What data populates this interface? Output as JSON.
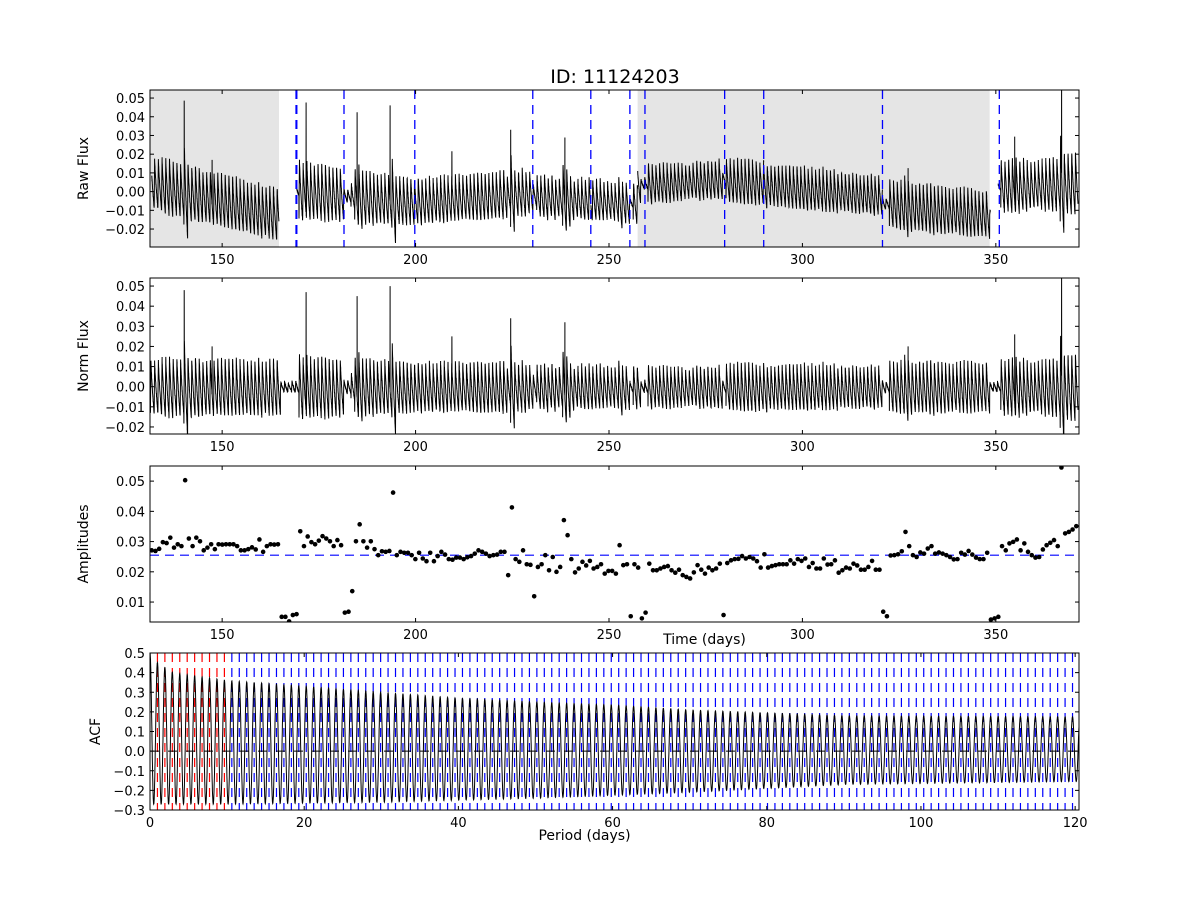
{
  "title": "ID: 11124203",
  "chart_data": [
    {
      "type": "line",
      "ylabel": "Raw Flux",
      "xlim": [
        131.35,
        371.5
      ],
      "ylim": [
        -0.0296,
        0.0543
      ],
      "xticks": [
        150,
        200,
        250,
        300,
        350
      ],
      "xtick_labels": [
        "150",
        "200",
        "250",
        "300",
        "350"
      ],
      "yticks": [
        0.05,
        0.04,
        0.03,
        0.02,
        0.01,
        0.0,
        -0.01,
        -0.02
      ],
      "ytick_labels": [
        "0.05",
        "0.04",
        "0.03",
        "0.02",
        "0.01",
        "0.00",
        "−0.01",
        "−0.02"
      ],
      "shaded_regions": [
        [
          131.35,
          164.7
        ],
        [
          257.4,
          348.4
        ]
      ],
      "shade_color": "#e5e5e5",
      "vlines": [
        169.1,
        169.3,
        181.5,
        199.8,
        230.3,
        245.3,
        255.4,
        259.3,
        279.9,
        290.0,
        320.7,
        350.9
      ],
      "vline_color": "#0000ff",
      "baseline_segments": [
        {
          "t": [
            131.8,
            164.7
          ],
          "flux": [
            0.005,
            -0.012
          ]
        },
        {
          "t": [
            169.2,
            181.5
          ],
          "flux": [
            0.001,
            -0.001
          ]
        },
        {
          "t": [
            181.5,
            199.8
          ],
          "flux": [
            -0.002,
            -0.005
          ]
        },
        {
          "t": [
            199.8,
            230.3
          ],
          "flux": [
            -0.005,
            0.0
          ]
        },
        {
          "t": [
            230.3,
            245.3
          ],
          "flux": [
            -0.002,
            -0.004
          ]
        },
        {
          "t": [
            245.3,
            257.4
          ],
          "flux": [
            -0.004,
            -0.006
          ]
        },
        {
          "t": [
            257.4,
            279.9
          ],
          "flux": [
            0.004,
            0.007
          ]
        },
        {
          "t": [
            279.9,
            290.0
          ],
          "flux": [
            0.006,
            0.005
          ]
        },
        {
          "t": [
            290.0,
            320.7
          ],
          "flux": [
            0.004,
            -0.002
          ]
        },
        {
          "t": [
            320.7,
            348.6
          ],
          "flux": [
            -0.006,
            -0.012
          ]
        },
        {
          "t": [
            350.6,
            371.3
          ],
          "flux": [
            0.003,
            0.005
          ]
        }
      ]
    },
    {
      "type": "line",
      "ylabel": "Norm Flux",
      "xlim": [
        131.35,
        371.5
      ],
      "ylim": [
        -0.0235,
        0.054
      ],
      "xticks": [
        150,
        200,
        250,
        300,
        350
      ],
      "xtick_labels": [
        "150",
        "200",
        "250",
        "300",
        "350"
      ],
      "yticks": [
        0.05,
        0.04,
        0.03,
        0.02,
        0.01,
        0.0,
        -0.01,
        -0.02
      ],
      "ytick_labels": [
        "0.05",
        "0.04",
        "0.03",
        "0.02",
        "0.01",
        "0.00",
        "−0.01",
        "−0.02"
      ],
      "flares": [
        {
          "t": 140.2,
          "flux": 0.048
        },
        {
          "t": 147.4,
          "flux": 0.02
        },
        {
          "t": 171.7,
          "flux": 0.047
        },
        {
          "t": 184.9,
          "flux": 0.045
        },
        {
          "t": 193.4,
          "flux": 0.05
        },
        {
          "t": 209.4,
          "flux": 0.025
        },
        {
          "t": 224.6,
          "flux": 0.034
        },
        {
          "t": 238.6,
          "flux": 0.032
        },
        {
          "t": 327.3,
          "flux": 0.02
        },
        {
          "t": 354.9,
          "flux": 0.026
        },
        {
          "t": 367.0,
          "flux": 0.056
        }
      ]
    },
    {
      "type": "scatter",
      "ylabel": "Amplitudes",
      "xlabel": "Time (days)",
      "xlim": [
        131.35,
        371.5
      ],
      "ylim": [
        0.0034,
        0.055
      ],
      "xticks": [
        150,
        200,
        250,
        300,
        350
      ],
      "xtick_labels": [
        "150",
        "200",
        "250",
        "300",
        "350"
      ],
      "yticks": [
        0.05,
        0.04,
        0.03,
        0.02,
        0.01
      ],
      "ytick_labels": [
        "0.05",
        "0.04",
        "0.03",
        "0.02",
        "0.01"
      ],
      "hline": 0.0255,
      "hline_color": "#0000ff",
      "amplitudes": {
        "t_start": 131.8,
        "t_end": 370.8,
        "values": [
          0.0271,
          0.0269,
          0.0276,
          0.0298,
          0.0295,
          0.0313,
          0.028,
          0.0291,
          0.0285,
          0.0503,
          0.031,
          0.0285,
          0.0313,
          0.0301,
          0.0271,
          0.028,
          0.0291,
          0.0275,
          0.0291,
          0.029,
          0.0291,
          0.0291,
          0.0291,
          0.0285,
          0.0271,
          0.0271,
          0.0275,
          0.0281,
          0.0274,
          0.0307,
          0.0266,
          0.0285,
          0.0291,
          0.029,
          0.0291,
          0.0051,
          0.0051,
          0.0036,
          0.0057,
          0.006,
          0.0334,
          0.0285,
          0.0317,
          0.0298,
          0.0291,
          0.0303,
          0.0318,
          0.031,
          0.0301,
          0.0285,
          0.0305,
          0.0288,
          0.0065,
          0.0068,
          0.0136,
          0.0301,
          0.0357,
          0.0301,
          0.028,
          0.0301,
          0.0275,
          0.0255,
          0.0268,
          0.0266,
          0.0269,
          0.0462,
          0.0255,
          0.0266,
          0.0263,
          0.0263,
          0.0255,
          0.0242,
          0.0263,
          0.0244,
          0.0235,
          0.0263,
          0.0235,
          0.0252,
          0.0266,
          0.0257,
          0.0242,
          0.024,
          0.0247,
          0.0247,
          0.0242,
          0.0248,
          0.0252,
          0.026,
          0.0271,
          0.0266,
          0.026,
          0.0252,
          0.0255,
          0.0257,
          0.0266,
          0.0266,
          0.0189,
          0.0413,
          0.0242,
          0.0233,
          0.0271,
          0.0225,
          0.0223,
          0.0119,
          0.0216,
          0.0225,
          0.0255,
          0.0205,
          0.0249,
          0.02,
          0.0216,
          0.0371,
          0.0321,
          0.0242,
          0.0198,
          0.0211,
          0.0233,
          0.0221,
          0.0236,
          0.0211,
          0.0216,
          0.0225,
          0.0194,
          0.0203,
          0.0203,
          0.0194,
          0.0288,
          0.0222,
          0.0225,
          0.0053,
          0.0225,
          0.0214,
          0.0046,
          0.0065,
          0.0227,
          0.0205,
          0.0205,
          0.0211,
          0.0216,
          0.0219,
          0.0205,
          0.0197,
          0.0207,
          0.0189,
          0.0183,
          0.0178,
          0.0198,
          0.0222,
          0.0207,
          0.0194,
          0.0214,
          0.0205,
          0.0211,
          0.0227,
          0.0057,
          0.0229,
          0.0238,
          0.0242,
          0.0243,
          0.0252,
          0.0244,
          0.0249,
          0.0244,
          0.0235,
          0.0214,
          0.0258,
          0.0214,
          0.0219,
          0.0222,
          0.0225,
          0.0225,
          0.0225,
          0.0238,
          0.0227,
          0.0242,
          0.0236,
          0.0244,
          0.0216,
          0.0229,
          0.0211,
          0.0211,
          0.0244,
          0.0224,
          0.0225,
          0.0238,
          0.0197,
          0.0205,
          0.0214,
          0.0211,
          0.0227,
          0.0221,
          0.0207,
          0.0207,
          0.0216,
          0.0236,
          0.0207,
          0.0207,
          0.0068,
          0.0053,
          0.0254,
          0.0255,
          0.0258,
          0.0268,
          0.0332,
          0.0285,
          0.0255,
          0.0249,
          0.0264,
          0.026,
          0.0277,
          0.0285,
          0.026,
          0.0264,
          0.026,
          0.0255,
          0.0249,
          0.0241,
          0.0242,
          0.0263,
          0.0257,
          0.0269,
          0.0257,
          0.0247,
          0.0242,
          0.0242,
          0.0263,
          0.0042,
          0.0046,
          0.0051,
          0.0285,
          0.0271,
          0.0294,
          0.0299,
          0.0307,
          0.0271,
          0.0294,
          0.0266,
          0.0255,
          0.0247,
          0.0249,
          0.0274,
          0.0288,
          0.0296,
          0.0305,
          0.0285,
          0.0545,
          0.0327,
          0.0332,
          0.034,
          0.0351
        ]
      }
    },
    {
      "type": "line",
      "ylabel": "ACF",
      "xlabel": "Period (days)",
      "xlim": [
        0,
        120.5
      ],
      "ylim": [
        -0.3,
        0.5
      ],
      "xticks": [
        0,
        20,
        40,
        60,
        80,
        100,
        120
      ],
      "xtick_labels": [
        "0",
        "20",
        "40",
        "60",
        "80",
        "100",
        "120"
      ],
      "yticks": [
        0.5,
        0.4,
        0.3,
        0.2,
        0.1,
        0.0,
        -0.1,
        -0.2,
        -0.3
      ],
      "ytick_labels": [
        "0.5",
        "0.4",
        "0.3",
        "0.2",
        "0.1",
        "0.0",
        "−0.1",
        "−0.2",
        "−0.3"
      ],
      "peak_period": 0.965,
      "red_lines_until": 10,
      "red_color": "#ff0000",
      "blue_color": "#0000ff",
      "zero_line": 0.0,
      "peak_envelope": [
        [
          0,
          0.5
        ],
        [
          1,
          0.45
        ],
        [
          3,
          0.4
        ],
        [
          10,
          0.36
        ],
        [
          20,
          0.33
        ],
        [
          30,
          0.3
        ],
        [
          40,
          0.27
        ],
        [
          50,
          0.25
        ],
        [
          60,
          0.235
        ],
        [
          70,
          0.21
        ],
        [
          80,
          0.195
        ],
        [
          90,
          0.18
        ],
        [
          120,
          0.175
        ]
      ],
      "trough_envelope": [
        [
          0,
          -0.27
        ],
        [
          10,
          -0.27
        ],
        [
          30,
          -0.26
        ],
        [
          50,
          -0.24
        ],
        [
          70,
          -0.21
        ],
        [
          90,
          -0.17
        ],
        [
          120,
          -0.155
        ]
      ]
    }
  ]
}
